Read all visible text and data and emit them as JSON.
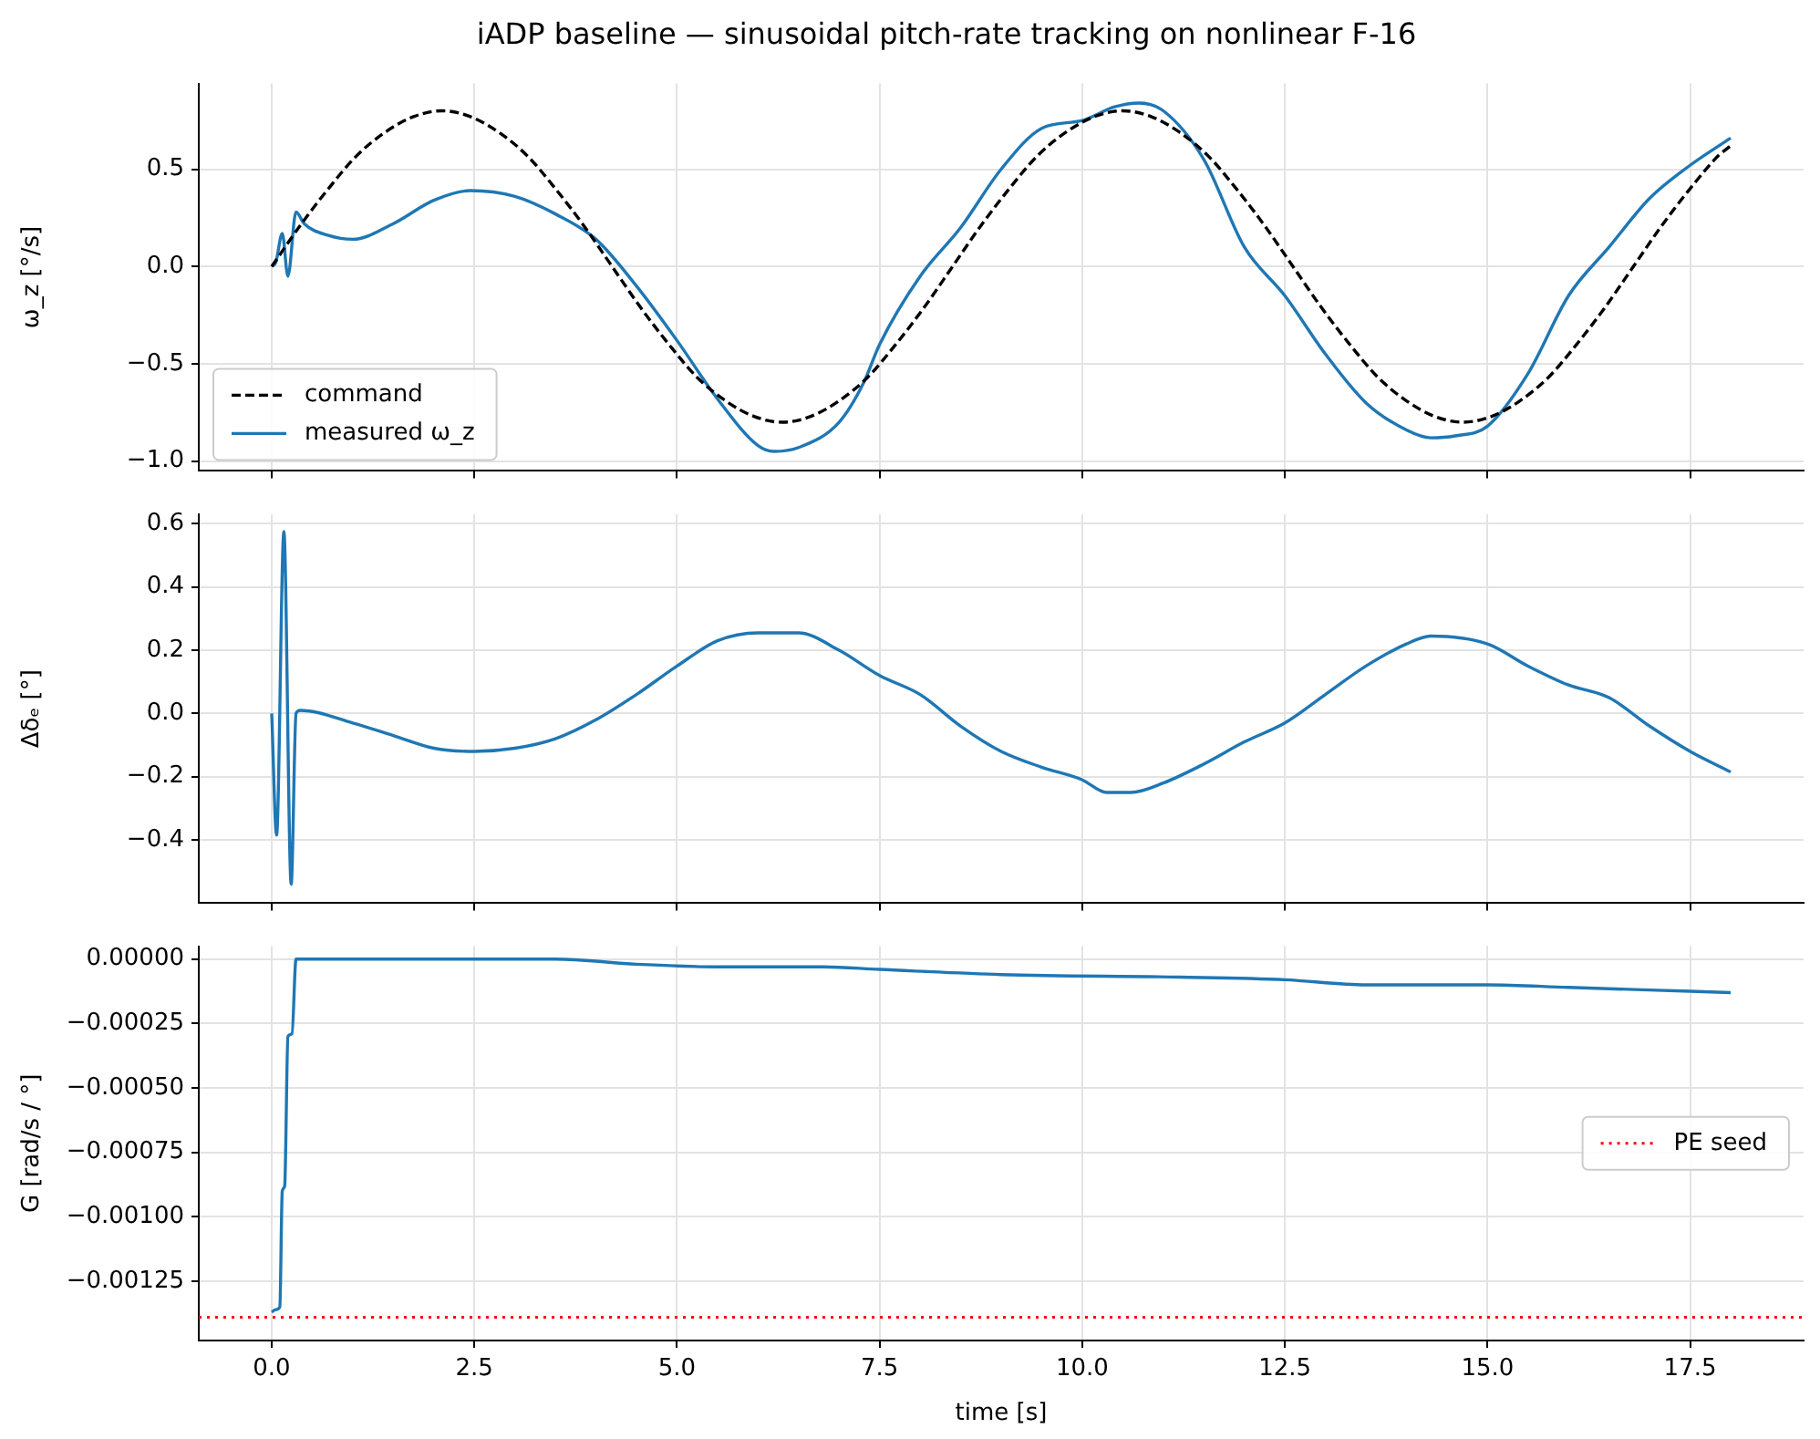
{
  "chart_data": [
    {
      "type": "line",
      "title": "iADP baseline — sinusoidal pitch-rate tracking on nonlinear F-16",
      "ylabel": "ω_z [°/s]",
      "xlim": [
        -0.9,
        18.9
      ],
      "xticks": [
        {
          "value": 0,
          "label": null
        },
        {
          "value": 2.5,
          "label": null
        },
        {
          "value": 5,
          "label": null
        },
        {
          "value": 7.5,
          "label": null
        },
        {
          "value": 10,
          "label": null
        },
        {
          "value": 12.5,
          "label": null
        },
        {
          "value": 15,
          "label": null
        },
        {
          "value": 17.5,
          "label": null
        }
      ],
      "ylim": [
        -1.05,
        0.94
      ],
      "yticks": [
        {
          "value": -1,
          "label": "−1.0"
        },
        {
          "value": -0.5,
          "label": "−0.5"
        },
        {
          "value": 0,
          "label": "0.0"
        },
        {
          "value": 0.5,
          "label": "0.5"
        }
      ],
      "tick_labels": "y",
      "grid": true,
      "legend": "bottom left",
      "marker": "none",
      "series": [
        {
          "name": "command",
          "color": "#000000",
          "line_style": "dashed",
          "x": [
            0,
            0.35,
            0.7,
            1.05,
            1.4,
            1.75,
            2.1,
            2.45,
            2.8,
            3.15,
            3.5,
            3.85,
            4.2,
            4.55,
            4.9,
            5.25,
            5.6,
            5.95,
            6.3,
            6.65,
            7,
            7.35,
            7.7,
            8.05,
            8.4,
            8.75,
            9.1,
            9.45,
            9.8,
            10.15,
            10.5,
            10.85,
            11.2,
            11.55,
            11.9,
            12.25,
            12.6,
            12.95,
            13.3,
            13.65,
            14,
            14.35,
            14.7,
            15.05,
            15.4,
            15.75,
            16.1,
            16.45,
            16.8,
            17.15,
            17.5,
            17.85,
            18
          ],
          "values": [
            0,
            0.21,
            0.4,
            0.57,
            0.69,
            0.77,
            0.8,
            0.77,
            0.69,
            0.57,
            0.4,
            0.21,
            0,
            -0.21,
            -0.4,
            -0.57,
            -0.69,
            -0.77,
            -0.8,
            -0.77,
            -0.69,
            -0.57,
            -0.4,
            -0.21,
            0,
            0.21,
            0.4,
            0.57,
            0.69,
            0.77,
            0.8,
            0.77,
            0.69,
            0.57,
            0.4,
            0.21,
            0,
            -0.21,
            -0.4,
            -0.57,
            -0.69,
            -0.77,
            -0.8,
            -0.77,
            -0.69,
            -0.57,
            -0.4,
            -0.21,
            0,
            0.21,
            0.4,
            0.57,
            0.62
          ]
        },
        {
          "name": "measured ω_z",
          "color": "#1f77b4",
          "x": [
            0,
            0.05,
            0.13,
            0.2,
            0.3,
            0.4,
            0.7,
            1,
            1.5,
            2,
            2.45,
            3,
            3.5,
            4,
            4.5,
            5,
            5.5,
            6,
            6.2,
            6.5,
            7,
            7.3,
            7.5,
            8,
            8.5,
            9,
            9.5,
            10,
            10.4,
            10.7,
            11,
            11.5,
            12,
            12.5,
            13,
            13.5,
            14,
            14.3,
            14.6,
            15,
            15.5,
            16,
            16.5,
            17,
            17.5,
            18
          ],
          "values": [
            0,
            0.02,
            0.17,
            -0.05,
            0.28,
            0.22,
            0.16,
            0.14,
            0.22,
            0.34,
            0.39,
            0.36,
            0.27,
            0.14,
            -0.1,
            -0.38,
            -0.68,
            -0.92,
            -0.95,
            -0.93,
            -0.8,
            -0.6,
            -0.4,
            -0.05,
            0.2,
            0.5,
            0.71,
            0.75,
            0.82,
            0.84,
            0.8,
            0.55,
            0.1,
            -0.15,
            -0.45,
            -0.7,
            -0.84,
            -0.88,
            -0.87,
            -0.82,
            -0.55,
            -0.15,
            0.1,
            0.35,
            0.52,
            0.66
          ]
        }
      ]
    },
    {
      "type": "line",
      "ylabel": "Δδₑ [°]",
      "xlim": [
        -0.9,
        18.9
      ],
      "xticks": [
        {
          "value": 0,
          "label": null
        },
        {
          "value": 2.5,
          "label": null
        },
        {
          "value": 5,
          "label": null
        },
        {
          "value": 7.5,
          "label": null
        },
        {
          "value": 10,
          "label": null
        },
        {
          "value": 12.5,
          "label": null
        },
        {
          "value": 15,
          "label": null
        },
        {
          "value": 17.5,
          "label": null
        }
      ],
      "ylim": [
        -0.6,
        0.63
      ],
      "yticks": [
        {
          "value": -0.4,
          "label": "−0.4"
        },
        {
          "value": -0.2,
          "label": "−0.2"
        },
        {
          "value": 0,
          "label": "0.0"
        },
        {
          "value": 0.2,
          "label": "0.2"
        },
        {
          "value": 0.4,
          "label": "0.4"
        },
        {
          "value": 0.6,
          "label": "0.6"
        }
      ],
      "tick_labels": "y",
      "grid": true,
      "marker": "none",
      "series": [
        {
          "color": "#1f77b4",
          "x": [
            0,
            0.06,
            0.15,
            0.24,
            0.3,
            0.35,
            1,
            1.5,
            2,
            2.5,
            3,
            3.5,
            4,
            4.5,
            5,
            5.5,
            6,
            6.5,
            7,
            7.5,
            8,
            8.5,
            9,
            9.5,
            10,
            10.3,
            10.6,
            11,
            11.5,
            12,
            12.5,
            13,
            13.5,
            14,
            14.3,
            15,
            15.5,
            16,
            16.5,
            17,
            17.5,
            18
          ],
          "values": [
            0,
            -0.385,
            0.575,
            -0.54,
            0,
            0.01,
            -0.03,
            -0.07,
            -0.11,
            -0.12,
            -0.11,
            -0.08,
            -0.02,
            0.06,
            0.15,
            0.23,
            0.255,
            0.255,
            0.2,
            0.12,
            0.06,
            -0.04,
            -0.12,
            -0.17,
            -0.21,
            -0.25,
            -0.25,
            -0.22,
            -0.16,
            -0.09,
            -0.03,
            0.06,
            0.15,
            0.22,
            0.245,
            0.22,
            0.15,
            0.09,
            0.05,
            -0.04,
            -0.12,
            -0.185
          ]
        }
      ]
    },
    {
      "type": "line",
      "xlabel": "time [s]",
      "ylabel": "G [rad/s / °]",
      "xlim": [
        -0.9,
        18.9
      ],
      "xticks": [
        {
          "value": 0,
          "label": "0.0"
        },
        {
          "value": 2.5,
          "label": "2.5"
        },
        {
          "value": 5,
          "label": "5.0"
        },
        {
          "value": 7.5,
          "label": "7.5"
        },
        {
          "value": 10,
          "label": "10.0"
        },
        {
          "value": 12.5,
          "label": "12.5"
        },
        {
          "value": 15,
          "label": "15.0"
        },
        {
          "value": 17.5,
          "label": "17.5"
        }
      ],
      "ylim": [
        -0.00148,
        5e-05
      ],
      "yticks": [
        {
          "value": -0.00125,
          "label": "−0.00125"
        },
        {
          "value": -0.001,
          "label": "−0.00100"
        },
        {
          "value": -0.00075,
          "label": "−0.00075"
        },
        {
          "value": -0.0005,
          "label": "−0.00050"
        },
        {
          "value": -0.00025,
          "label": "−0.00025"
        },
        {
          "value": 0,
          "label": "0.00000"
        }
      ],
      "grid": true,
      "legend": "right",
      "marker": "none",
      "ref_lines": [
        {
          "axis": "y",
          "value": -0.00139,
          "label": "PE seed",
          "color": "#ff0000",
          "line_style": "dotted"
        }
      ],
      "series": [
        {
          "color": "#1f77b4",
          "x": [
            0,
            0.05,
            0.1,
            0.13,
            0.16,
            0.2,
            0.25,
            0.3,
            1,
            3.5,
            4.5,
            5.5,
            6.8,
            7.5,
            9,
            11.2,
            12.5,
            13.5,
            15,
            16,
            17,
            18
          ],
          "values": [
            -0.00137,
            -0.00136,
            -0.00135,
            -0.0009,
            -0.00088,
            -0.0003,
            -0.00029,
            0,
            0,
            0,
            -2e-05,
            -3e-05,
            -3e-05,
            -4e-05,
            -6e-05,
            -7e-05,
            -8e-05,
            -0.0001,
            -0.0001,
            -0.00011,
            -0.00012,
            -0.00013
          ]
        }
      ]
    }
  ]
}
